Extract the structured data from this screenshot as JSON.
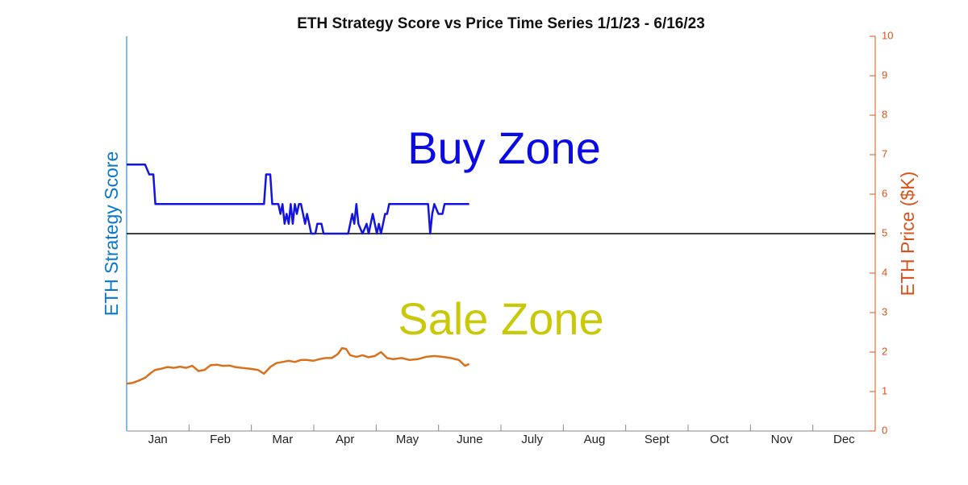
{
  "chart_data": {
    "type": "line",
    "title": "ETH Strategy Score vs Price Time Series 1/1/23 - 6/16/23",
    "ylabel": "ETH Strategy Score",
    "y2label": "ETH Price ($K)",
    "categories": [
      "Jan",
      "Feb",
      "Mar",
      "Apr",
      "May",
      "June",
      "July",
      "Aug",
      "Sept",
      "Oct",
      "Nov",
      "Dec"
    ],
    "xlim": [
      0,
      365
    ],
    "ylim": [
      0,
      10
    ],
    "y2lim": [
      0,
      10
    ],
    "y2ticks": [
      0,
      1,
      2,
      3,
      4,
      5,
      6,
      7,
      8,
      9,
      10
    ],
    "reference_line": 5,
    "annotations": [
      {
        "text": "Buy Zone",
        "color": "#0a0ae6"
      },
      {
        "text": "Sale Zone",
        "color": "#c9c90a"
      }
    ],
    "series": [
      {
        "color": "#1414e0",
        "x": [
          0,
          9,
          11,
          13,
          14,
          67,
          68,
          70,
          71,
          74,
          75,
          76,
          77,
          78,
          79,
          80,
          81,
          82,
          83,
          84,
          85,
          86,
          87,
          88,
          89,
          90,
          92,
          93,
          95,
          96,
          108,
          110,
          111,
          112,
          113,
          115,
          117,
          118,
          120,
          122,
          123,
          124,
          126,
          127,
          128,
          147,
          148,
          149,
          150,
          152,
          154,
          155,
          167
        ],
        "values": [
          6.75,
          6.75,
          6.5,
          6.5,
          5.75,
          5.75,
          6.5,
          6.5,
          5.75,
          5.75,
          5.5,
          5.75,
          5.25,
          5.5,
          5.25,
          5.75,
          5.25,
          5.75,
          5.5,
          5.75,
          5.75,
          5.5,
          5.25,
          5.5,
          5.25,
          5,
          5,
          5.25,
          5.25,
          5,
          5,
          5.5,
          5.25,
          5.75,
          5.25,
          5,
          5.25,
          5,
          5.5,
          5,
          5.25,
          5,
          5.5,
          5.5,
          5.75,
          5.75,
          5,
          5.5,
          5.75,
          5.5,
          5.5,
          5.75,
          5.75
        ]
      },
      {
        "color": "#d9711c",
        "axis": "y2",
        "x": [
          0,
          3,
          6,
          9,
          12,
          14,
          17,
          20,
          23,
          26,
          29,
          32,
          35,
          38,
          41,
          44,
          47,
          50,
          53,
          56,
          60,
          64,
          67,
          70,
          73,
          76,
          79,
          82,
          85,
          88,
          91,
          94,
          97,
          100,
          103,
          105,
          107,
          109,
          112,
          115,
          118,
          121,
          124,
          127,
          130,
          134,
          138,
          142,
          146,
          150,
          154,
          158,
          162,
          165,
          167
        ],
        "values": [
          1.2,
          1.22,
          1.28,
          1.35,
          1.48,
          1.55,
          1.58,
          1.62,
          1.6,
          1.63,
          1.6,
          1.65,
          1.52,
          1.55,
          1.67,
          1.68,
          1.65,
          1.66,
          1.62,
          1.6,
          1.58,
          1.55,
          1.45,
          1.62,
          1.72,
          1.75,
          1.78,
          1.75,
          1.8,
          1.8,
          1.78,
          1.82,
          1.85,
          1.85,
          1.95,
          2.1,
          2.08,
          1.92,
          1.88,
          1.92,
          1.87,
          1.9,
          2.0,
          1.85,
          1.82,
          1.85,
          1.8,
          1.82,
          1.88,
          1.9,
          1.88,
          1.85,
          1.8,
          1.65,
          1.7
        ]
      }
    ]
  }
}
